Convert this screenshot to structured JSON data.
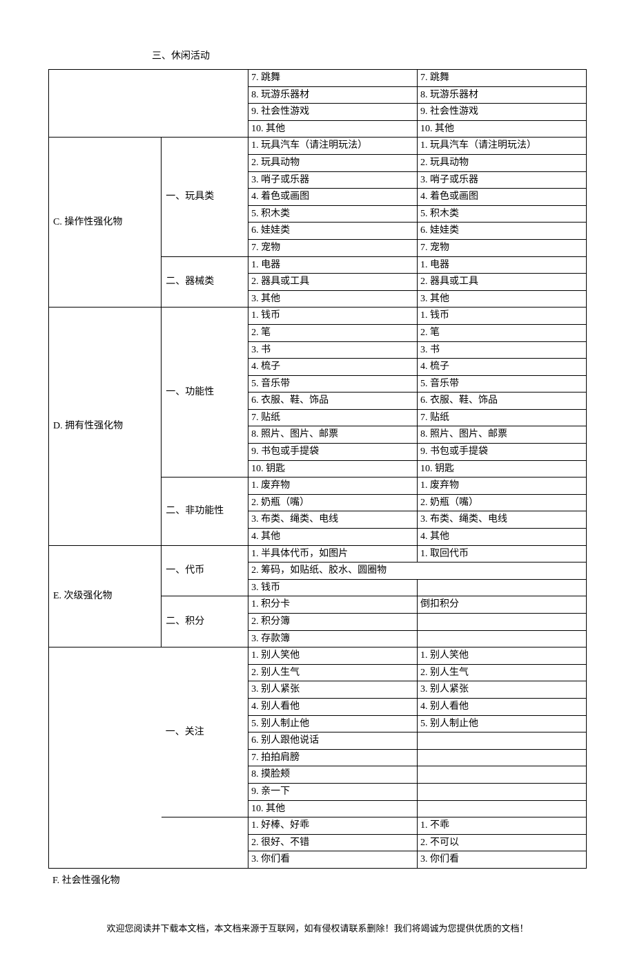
{
  "heading": "三、休闲活动",
  "trailing_label": "F. 社会性强化物",
  "footer": "欢迎您阅读并下载本文档，本文档来源于互联网，如有侵权请联系删除！我们将竭诚为您提供优质的文档！",
  "prelude_rows": [
    [
      "7. 跳舞",
      "7. 跳舞"
    ],
    [
      "8. 玩游乐器材",
      "8. 玩游乐器材"
    ],
    [
      "9. 社会性游戏",
      "9. 社会性游戏"
    ],
    [
      "10. 其他",
      "10. 其他"
    ]
  ],
  "section_c": {
    "label": "C. 操作性强化物",
    "sub1": {
      "label": "一、玩具类",
      "rows": [
        [
          "1. 玩具汽车（请注明玩法）",
          "1. 玩具汽车（请注明玩法）"
        ],
        [
          "2. 玩具动物",
          "2. 玩具动物"
        ],
        [
          "3. 哨子或乐器",
          "3. 哨子或乐器"
        ],
        [
          "4. 着色或画图",
          "4. 着色或画图"
        ],
        [
          "5. 积木类",
          "5. 积木类"
        ],
        [
          "6. 娃娃类",
          "6. 娃娃类"
        ],
        [
          "7. 宠物",
          "7. 宠物"
        ]
      ]
    },
    "sub2": {
      "label": "二、器械类",
      "rows": [
        [
          "1. 电器",
          "1. 电器"
        ],
        [
          "2. 器具或工具",
          "2. 器具或工具"
        ],
        [
          "3. 其他",
          "3. 其他"
        ]
      ]
    }
  },
  "section_d": {
    "label": "D. 拥有性强化物",
    "sub1": {
      "label": "一、功能性",
      "rows": [
        [
          "1. 钱币",
          "1. 钱币"
        ],
        [
          "2. 笔",
          "2. 笔"
        ],
        [
          "3. 书",
          "3. 书"
        ],
        [
          "4. 梳子",
          "4. 梳子"
        ],
        [
          "5. 音乐带",
          "5. 音乐带"
        ],
        [
          "6. 衣服、鞋、饰品",
          "6. 衣服、鞋、饰品"
        ],
        [
          "7. 贴纸",
          "7. 贴纸"
        ],
        [
          "8. 照片、图片、邮票",
          "8. 照片、图片、邮票"
        ],
        [
          "9. 书包或手提袋",
          "9. 书包或手提袋"
        ],
        [
          "10. 钥匙",
          "10. 钥匙"
        ]
      ]
    },
    "sub2": {
      "label": "二、非功能性",
      "rows": [
        [
          "1. 废弃物",
          "1. 废弃物"
        ],
        [
          "2. 奶瓶（嘴）",
          "2. 奶瓶（嘴）"
        ],
        [
          "3. 布类、绳类、电线",
          "3. 布类、绳类、电线"
        ],
        [
          "4. 其他",
          "4. 其他"
        ]
      ]
    }
  },
  "section_e": {
    "label": "E. 次级强化物",
    "sub1": {
      "label": "一、代币",
      "rows": [
        {
          "type": "normal",
          "c3": "1. 半具体代币，如图片",
          "c4": "1. 取回代币"
        },
        {
          "type": "span",
          "text": "2. 筹码，如贴纸、胶水、圆圈物"
        },
        {
          "type": "normal",
          "c3": "3. 钱币",
          "c4": ""
        }
      ]
    },
    "sub2": {
      "label": "二、积分",
      "rows": [
        {
          "type": "normal",
          "c3": "1. 积分卡",
          "c4": "倒扣积分"
        },
        {
          "type": "normal",
          "c3": "2. 积分簿",
          "c4": ""
        },
        {
          "type": "normal",
          "c3": "3. 存款簿",
          "c4": ""
        }
      ]
    }
  },
  "section_f": {
    "sub1": {
      "label": "一、关注",
      "rows": [
        [
          "1. 别人笑他",
          "1. 别人笑他"
        ],
        [
          "2. 别人生气",
          "2. 别人生气"
        ],
        [
          "3. 别人紧张",
          "3. 别人紧张"
        ],
        [
          "4. 别人看他",
          "4. 别人看他"
        ],
        [
          "5. 别人制止他",
          "5. 别人制止他"
        ],
        [
          "6. 别人跟他说话",
          ""
        ],
        [
          "7. 拍拍肩膀",
          ""
        ],
        [
          "8. 摸脸颊",
          ""
        ],
        [
          "9. 亲一下",
          ""
        ],
        [
          "10. 其他",
          ""
        ]
      ]
    },
    "sub2": {
      "rows": [
        [
          "1. 好棒、好乖",
          "1. 不乖"
        ],
        [
          "2. 很好、不错",
          "2. 不可以"
        ],
        [
          "3. 你们看",
          "3. 你们看"
        ]
      ]
    }
  }
}
